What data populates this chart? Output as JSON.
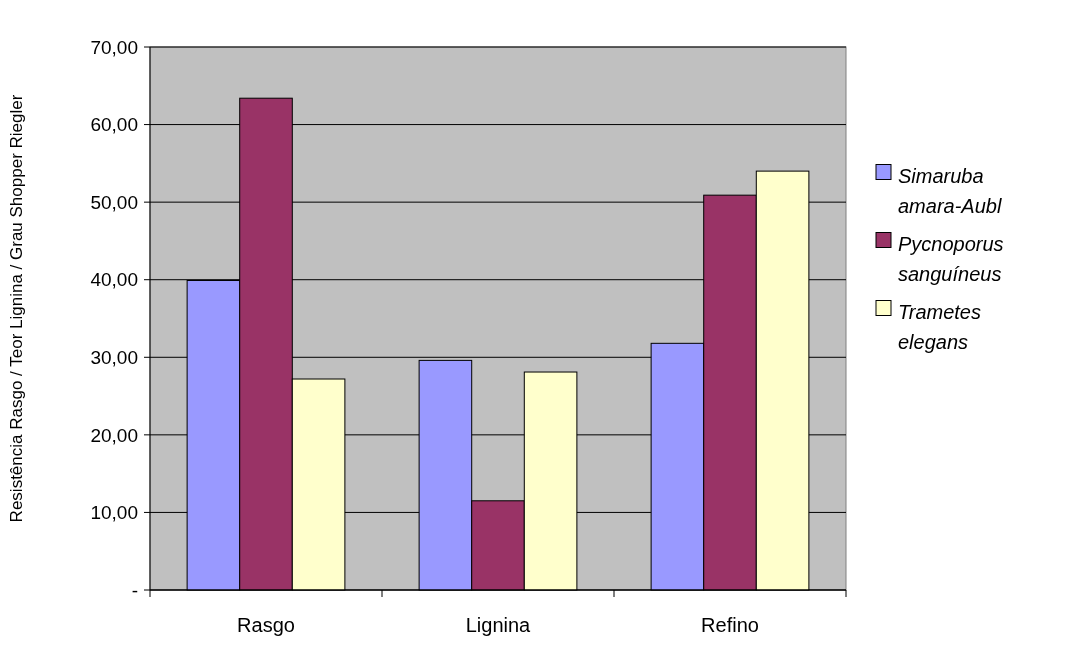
{
  "chart_data": {
    "type": "bar",
    "ylabel": "Resistência Rasgo / Teor Lignina / Grau Shopper Riegler",
    "categories": [
      "Rasgo",
      "Lignina",
      "Refino"
    ],
    "series": [
      {
        "name": "Simaruba amara-Aubl",
        "color": "#9999ff",
        "values": [
          39.9,
          29.6,
          31.8
        ]
      },
      {
        "name": "Pycnoporus sanguíneus",
        "color": "#993366",
        "values": [
          63.4,
          11.5,
          50.9
        ]
      },
      {
        "name": "Trametes elegans",
        "color": "#ffffcc",
        "values": [
          27.2,
          28.1,
          54.0
        ]
      }
    ],
    "ylim": [
      0,
      70
    ],
    "yticks": [
      {
        "value": 0,
        "label": "-"
      },
      {
        "value": 10,
        "label": "10,00"
      },
      {
        "value": 20,
        "label": "20,00"
      },
      {
        "value": 30,
        "label": "30,00"
      },
      {
        "value": 40,
        "label": "40,00"
      },
      {
        "value": 50,
        "label": "50,00"
      },
      {
        "value": 60,
        "label": "60,00"
      },
      {
        "value": 70,
        "label": "70,00"
      }
    ],
    "grid": "y",
    "legend": "right"
  }
}
